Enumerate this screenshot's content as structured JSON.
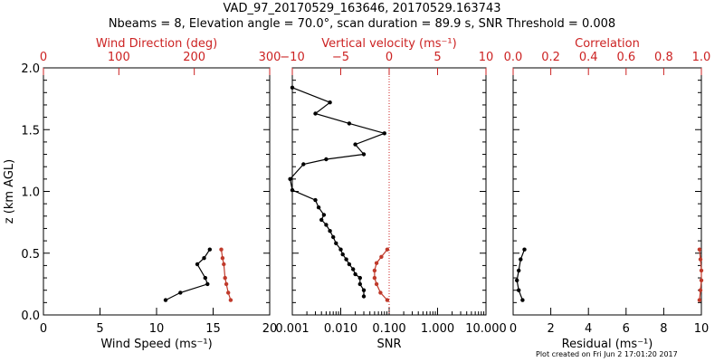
{
  "header": {
    "title": "VAD_97_20170529_163646, 20170529.163743",
    "subtitle": "Nbeams = 8, Elevation angle = 70.0°, scan duration = 89.9 s, SNR Threshold = 0.008"
  },
  "footer": {
    "text": "Plot created on Fri Jun  2 17:01:20 2017"
  },
  "colors": {
    "axis": "#000000",
    "top_axis": "#cc2222",
    "secondary_series": "#c03a2b"
  },
  "chart_data": [
    {
      "type": "line",
      "ylabel": "z (km AGL)",
      "ylim": [
        0,
        2
      ],
      "yticks": [
        "0.0",
        "0.5",
        "1.0",
        "1.5",
        "2.0"
      ],
      "bottom_axis": {
        "label": "Wind Speed (ms⁻¹)",
        "range": [
          0,
          20
        ],
        "ticks": [
          "0",
          "5",
          "10",
          "15",
          "20"
        ]
      },
      "top_axis": {
        "label": "Wind Direction (deg)",
        "range": [
          0,
          360
        ],
        "ticks": [
          "0",
          "100",
          "200",
          "300"
        ]
      },
      "series": [
        {
          "axis": "bottom",
          "color": "#000000",
          "x": [
            10.8,
            12.1,
            14.5,
            14.3,
            13.6,
            14.2,
            14.7
          ],
          "y": [
            0.12,
            0.18,
            0.25,
            0.3,
            0.41,
            0.46,
            0.53
          ]
        },
        {
          "axis": "top",
          "color": "#c03a2b",
          "x": [
            298,
            294,
            291,
            289,
            287,
            285,
            283
          ],
          "y": [
            0.12,
            0.18,
            0.25,
            0.3,
            0.41,
            0.46,
            0.53
          ]
        }
      ]
    },
    {
      "type": "line",
      "ylim": [
        0,
        2
      ],
      "bottom_axis": {
        "label": "SNR",
        "scale": "log",
        "range": [
          0.001,
          10
        ],
        "ticks": [
          "0.001",
          "0.010",
          "0.100",
          "1.000",
          "10.000"
        ]
      },
      "top_axis": {
        "label": "Vertical velocity (ms⁻¹)",
        "range": [
          -10,
          10
        ],
        "ticks": [
          "−10",
          "−5",
          "0",
          "5",
          "10"
        ]
      },
      "reference_line": {
        "axis": "top",
        "value": 0,
        "style": "dotted"
      },
      "series": [
        {
          "axis": "bottom",
          "scale": "log",
          "color": "#000000",
          "x": [
            0.03,
            0.03,
            0.025,
            0.025,
            0.02,
            0.018,
            0.015,
            0.013,
            0.011,
            0.01,
            0.008,
            0.007,
            0.006,
            0.005,
            0.004,
            0.0045,
            0.0035,
            0.003,
            0.001,
            0.0009,
            0.0017,
            0.005,
            0.03,
            0.02,
            0.08,
            0.015,
            0.003,
            0.006,
            0.001
          ],
          "y": [
            0.15,
            0.2,
            0.25,
            0.3,
            0.33,
            0.37,
            0.41,
            0.45,
            0.49,
            0.53,
            0.58,
            0.63,
            0.68,
            0.73,
            0.77,
            0.81,
            0.87,
            0.93,
            1.01,
            1.1,
            1.22,
            1.26,
            1.3,
            1.38,
            1.47,
            1.55,
            1.63,
            1.72,
            1.84
          ]
        },
        {
          "axis": "top",
          "color": "#c03a2b",
          "x": [
            -0.2,
            -0.9,
            -1.3,
            -1.5,
            -1.5,
            -1.3,
            -0.8,
            -0.2
          ],
          "y": [
            0.12,
            0.18,
            0.25,
            0.3,
            0.36,
            0.42,
            0.47,
            0.53
          ]
        }
      ]
    },
    {
      "type": "line",
      "ylim": [
        0,
        2
      ],
      "bottom_axis": {
        "label": "Residual (ms⁻¹)",
        "range": [
          0,
          10
        ],
        "ticks": [
          "0",
          "2",
          "4",
          "6",
          "8",
          "10"
        ]
      },
      "top_axis": {
        "label": "Correlation",
        "range": [
          0,
          1
        ],
        "ticks": [
          "0.0",
          "0.2",
          "0.4",
          "0.6",
          "0.8",
          "1.0"
        ]
      },
      "series": [
        {
          "axis": "bottom",
          "color": "#000000",
          "x": [
            0.5,
            0.3,
            0.2,
            0.3,
            0.4,
            0.6
          ],
          "y": [
            0.12,
            0.2,
            0.28,
            0.36,
            0.45,
            0.53
          ]
        },
        {
          "axis": "top",
          "color": "#c03a2b",
          "x": [
            0.99,
            0.995,
            1.0,
            1.0,
            0.995,
            0.99
          ],
          "y": [
            0.12,
            0.2,
            0.28,
            0.36,
            0.45,
            0.53
          ]
        }
      ]
    }
  ]
}
